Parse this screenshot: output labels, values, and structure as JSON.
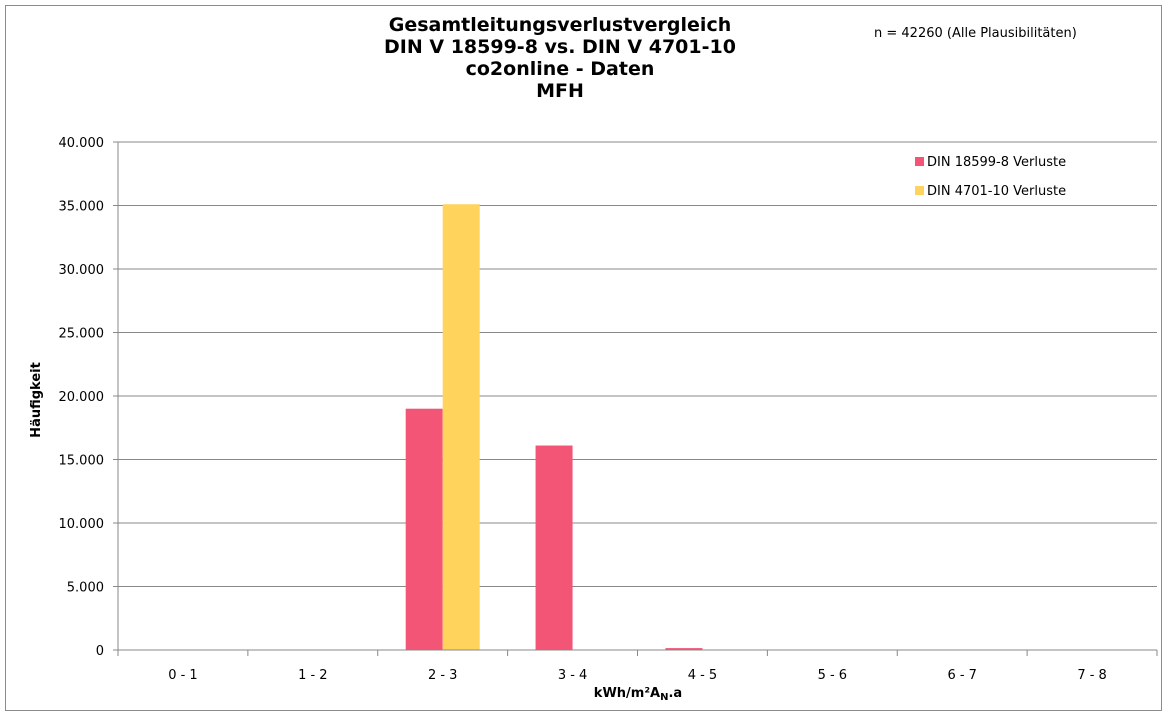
{
  "chart_data": {
    "type": "bar",
    "title_lines": [
      "Gesamtleitungsverlustvergleich",
      "DIN V 18599-8 vs. DIN V 4701-10",
      "co2online - Daten",
      "MFH"
    ],
    "annotation": "n = 42260  (Alle Plausibilitäten)",
    "categories": [
      "0 - 1",
      "1 - 2",
      "2 - 3",
      "3 - 4",
      "4 - 5",
      "5 - 6",
      "6 - 7",
      "7 - 8"
    ],
    "series": [
      {
        "name": "DIN 18599-8 Verluste",
        "color": "#f25575",
        "values": [
          0,
          0,
          19000,
          16100,
          150,
          0,
          0,
          0
        ]
      },
      {
        "name": "DIN 4701-10 Verluste",
        "color": "#ffd35c",
        "values": [
          0,
          0,
          35100,
          0,
          0,
          0,
          0,
          0
        ]
      }
    ],
    "ylabel": "Häufigkeit",
    "xlabel_main": "kWh/m²A",
    "xlabel_sub": "N",
    "xlabel_suffix": ".a",
    "ylim": [
      0,
      40000
    ],
    "y_ticks": [
      0,
      5000,
      10000,
      15000,
      20000,
      25000,
      30000,
      35000,
      40000
    ],
    "y_tick_labels": [
      "0",
      "5.000",
      "10.000",
      "15.000",
      "20.000",
      "25.000",
      "30.000",
      "35.000",
      "40.000"
    ],
    "grid": true,
    "legend_position": "top-right"
  }
}
